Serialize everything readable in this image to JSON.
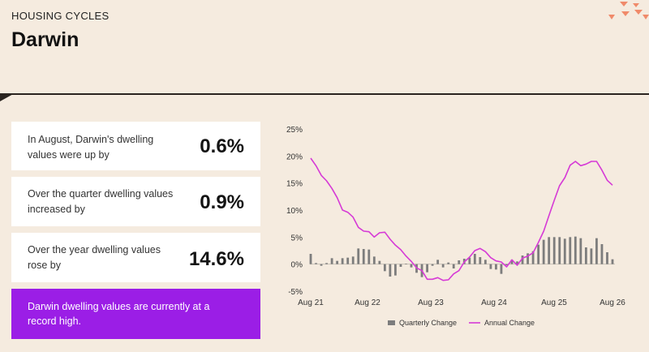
{
  "header": {
    "eyebrow": "HOUSING CYCLES",
    "title": "Darwin"
  },
  "stats": [
    {
      "label": "In August, Darwin's dwelling values were up by",
      "value": "0.6%"
    },
    {
      "label": "Over the quarter dwelling values increased by",
      "value": "0.9%"
    },
    {
      "label": "Over the year dwelling values rose by",
      "value": "14.6%"
    }
  ],
  "callout": {
    "text": "Darwin dwelling values are currently at a record high."
  },
  "colors": {
    "background": "#f5ebdf",
    "callout": "#9b1ee6",
    "annual_line": "#d63ad6",
    "quarterly_bar": "#7d7d7d"
  },
  "chart_data": {
    "type": "bar",
    "y_ticks": [
      "25%",
      "20%",
      "15%",
      "10%",
      "5%",
      "0%",
      "-5%"
    ],
    "x_ticks": [
      "Aug 21",
      "Aug 22",
      "Aug 23",
      "Aug 24",
      "Aug 25",
      "Aug 26"
    ],
    "ylim": [
      -5,
      25
    ],
    "legend_position": "bottom-center",
    "series": [
      {
        "name": "Quarterly Change",
        "type": "bar",
        "values": [
          1.9,
          0.2,
          -0.3,
          0.2,
          1.1,
          0.6,
          1.1,
          1.2,
          1.4,
          2.9,
          2.8,
          2.7,
          1.4,
          0.6,
          -1.3,
          -2.3,
          -2.1,
          -0.5,
          0.1,
          -0.6,
          -1.6,
          -2.4,
          -1.5,
          -0.3,
          0.8,
          -0.6,
          0.3,
          -0.8,
          0.7,
          1.0,
          1.2,
          1.9,
          1.3,
          0.8,
          -0.9,
          -1.0,
          -1.8,
          -0.2,
          0.8,
          0.5,
          1.6,
          2.0,
          2.4,
          3.6,
          4.5,
          5.0,
          5.0,
          5.0,
          4.7,
          5.0,
          5.1,
          4.8,
          3.1,
          2.9,
          4.8,
          3.7,
          2.2,
          0.9
        ]
      },
      {
        "name": "Annual Change",
        "type": "line",
        "values": [
          19.6,
          18.2,
          16.4,
          15.4,
          14.0,
          12.3,
          10.0,
          9.6,
          8.7,
          6.8,
          6.1,
          6.0,
          5.0,
          5.8,
          5.9,
          4.6,
          3.5,
          2.7,
          1.5,
          0.5,
          -0.7,
          -1.2,
          -2.8,
          -2.8,
          -2.5,
          -3.0,
          -2.9,
          -1.8,
          -1.2,
          0.4,
          1.3,
          2.5,
          2.9,
          2.3,
          1.2,
          0.6,
          0.4,
          -0.5,
          0.8,
          -0.2,
          1.1,
          1.5,
          2.1,
          4.0,
          6.1,
          9.0,
          11.8,
          14.5,
          16.0,
          18.3,
          19.0,
          18.2,
          18.5,
          19.0,
          19.0,
          17.4,
          15.5,
          14.6
        ]
      }
    ]
  }
}
